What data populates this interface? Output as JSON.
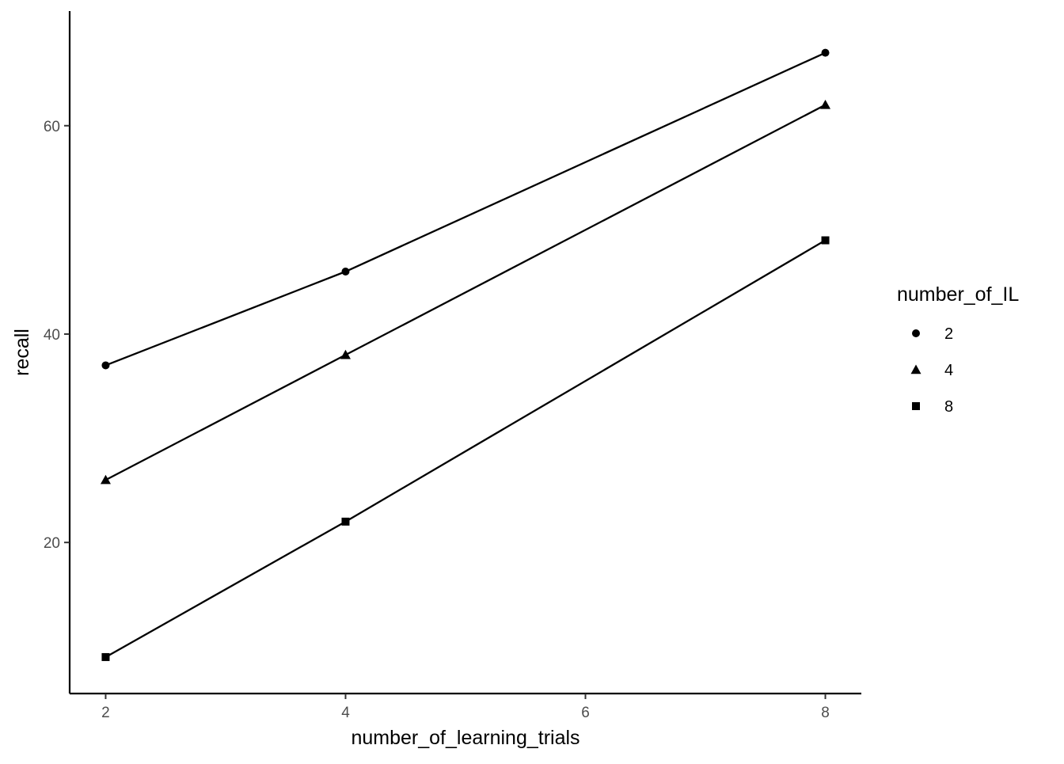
{
  "chart_data": {
    "type": "line",
    "xlabel": "number_of_learning_trials",
    "ylabel": "recall",
    "x": [
      2,
      4,
      8
    ],
    "xticks": [
      2,
      4,
      6,
      8
    ],
    "yticks": [
      20,
      40,
      60
    ],
    "xlim": [
      1.7,
      8.3
    ],
    "ylim": [
      5.5,
      71
    ],
    "legend": {
      "title": "number_of_IL",
      "placement": "right"
    },
    "grid": false,
    "series": [
      {
        "name": "2",
        "shape": "circle",
        "values": [
          37,
          46,
          67
        ]
      },
      {
        "name": "4",
        "shape": "triangle",
        "values": [
          26,
          38,
          62
        ]
      },
      {
        "name": "8",
        "shape": "square",
        "values": [
          9,
          22,
          49
        ]
      }
    ],
    "colors": {
      "line": "#000000",
      "axis": "#000000",
      "tick_text": "#4d4d4d"
    }
  }
}
